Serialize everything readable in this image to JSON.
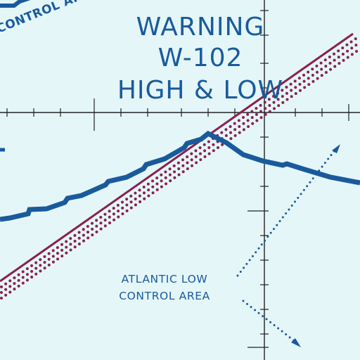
{
  "map": {
    "background_color": "#e4f6f8",
    "ink_color": "#1a5a9c",
    "boundary_color": "#8a1f4e",
    "warning_area": {
      "line1": "WARNING",
      "line2": "W-102",
      "line3": "HIGH & LOW"
    },
    "control_area_top": "CONTROL AREA",
    "control_area_bottom": {
      "line1": "ATLANTIC LOW",
      "line2": "CONTROL AREA"
    },
    "grid": {
      "style": "latitude-longitude graticule with tick marks"
    }
  }
}
